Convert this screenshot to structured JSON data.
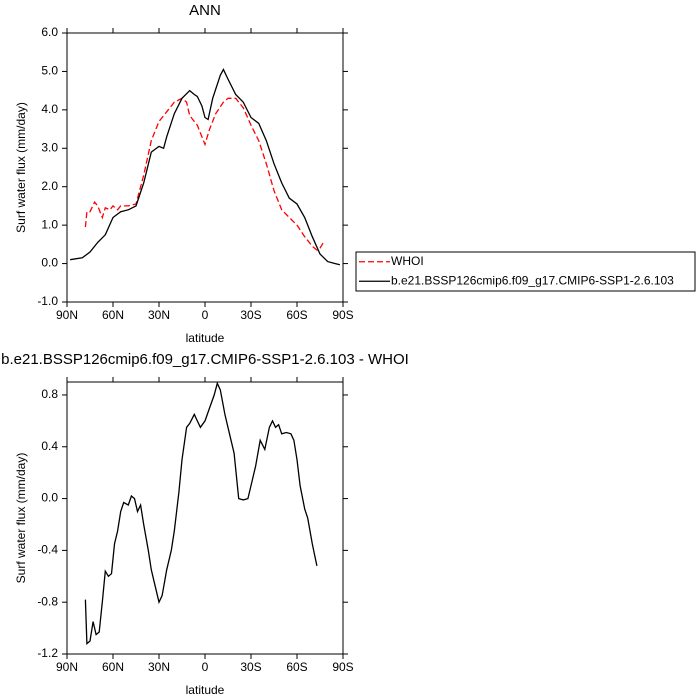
{
  "chart_data": [
    {
      "type": "line",
      "title": "ANN",
      "xlabel": "latitude",
      "ylabel": "Surf water flux (mm/day)",
      "xlim": [
        90,
        -90
      ],
      "ylim": [
        -1,
        6
      ],
      "xticks": [
        {
          "value": 90,
          "label": "90N"
        },
        {
          "value": 60,
          "label": "60N"
        },
        {
          "value": 30,
          "label": "30N"
        },
        0,
        {
          "value": -30,
          "label": "30S"
        },
        {
          "value": -60,
          "label": "60S"
        },
        {
          "value": -90,
          "label": "90S"
        }
      ],
      "yticks": [
        {
          "value": -1,
          "label": "-1.0"
        },
        {
          "value": 0,
          "label": "0.0"
        },
        {
          "value": 1,
          "label": "1.0"
        },
        {
          "value": 2,
          "label": "2.0"
        },
        {
          "value": 3,
          "label": "3.0"
        },
        {
          "value": 4,
          "label": "4.0"
        },
        {
          "value": 5,
          "label": "5.0"
        },
        {
          "value": 6,
          "label": "6.0"
        }
      ],
      "legend": "right",
      "series": [
        {
          "name": "WHOI",
          "color": "#ff0000",
          "dash": true,
          "x": [
            78,
            77,
            75,
            72,
            70,
            67,
            65,
            62,
            60,
            57,
            55,
            50,
            45,
            40,
            35,
            30,
            25,
            20,
            15,
            12,
            10,
            5,
            2,
            0,
            -3,
            -7,
            -12,
            -15,
            -20,
            -25,
            -30,
            -35,
            -40,
            -45,
            -50,
            -55,
            -60,
            -65,
            -70,
            -73,
            -75,
            -78
          ],
          "values": [
            0.95,
            1.35,
            1.35,
            1.6,
            1.5,
            1.2,
            1.45,
            1.4,
            1.5,
            1.4,
            1.5,
            1.5,
            1.55,
            2.3,
            3.2,
            3.7,
            3.95,
            4.2,
            4.3,
            4.2,
            3.85,
            3.6,
            3.3,
            3.1,
            3.5,
            3.9,
            4.2,
            4.3,
            4.3,
            4.05,
            3.6,
            3.2,
            2.6,
            1.9,
            1.4,
            1.2,
            1.0,
            0.7,
            0.45,
            0.35,
            0.4,
            0.6
          ]
        },
        {
          "name": "b.e21.BSSP126cmip6.f09_g17.CMIP6-SSP1-2.6.103",
          "color": "#000000",
          "dash": false,
          "x": [
            88,
            80,
            75,
            70,
            65,
            60,
            55,
            50,
            45,
            40,
            35,
            30,
            27,
            25,
            20,
            15,
            10,
            7,
            5,
            2,
            0,
            -2,
            -5,
            -10,
            -12,
            -15,
            -20,
            -25,
            -30,
            -35,
            -40,
            -45,
            -50,
            -55,
            -60,
            -65,
            -70,
            -75,
            -80,
            -85,
            -88
          ],
          "values": [
            0.1,
            0.15,
            0.3,
            0.55,
            0.75,
            1.2,
            1.35,
            1.4,
            1.5,
            2.1,
            2.9,
            3.05,
            3.0,
            3.3,
            3.9,
            4.3,
            4.5,
            4.4,
            4.35,
            4.1,
            3.8,
            3.75,
            4.3,
            4.9,
            5.05,
            4.8,
            4.4,
            4.2,
            3.8,
            3.65,
            3.2,
            2.6,
            2.1,
            1.7,
            1.55,
            1.2,
            0.7,
            0.25,
            0.05,
            0.0,
            -0.03
          ]
        }
      ]
    },
    {
      "type": "line",
      "title": "b.e21.BSSP126cmip6.f09_g17.CMIP6-SSP1-2.6.103 - WHOI",
      "xlabel": "latitude",
      "ylabel": "Surf water flux (mm/day)",
      "xlim": [
        90,
        -90
      ],
      "ylim": [
        -1.2,
        0.9
      ],
      "xticks": [
        {
          "value": 90,
          "label": "90N"
        },
        {
          "value": 60,
          "label": "60N"
        },
        {
          "value": 30,
          "label": "30N"
        },
        0,
        {
          "value": -30,
          "label": "30S"
        },
        {
          "value": -60,
          "label": "60S"
        },
        {
          "value": -90,
          "label": "90S"
        }
      ],
      "yticks": [
        -1.2,
        -0.8,
        -0.4,
        {
          "value": 0,
          "label": "0.0"
        },
        0.4,
        0.8
      ],
      "series": [
        {
          "color": "#000000",
          "dash": false,
          "x": [
            78,
            77,
            75,
            73,
            71,
            69,
            67,
            65,
            63,
            61,
            59,
            57,
            55,
            53,
            50,
            48,
            46,
            44,
            42,
            40,
            37,
            35,
            32,
            30,
            28,
            25,
            22,
            20,
            17,
            15,
            12,
            10,
            7,
            5,
            3,
            0,
            -3,
            -6,
            -8,
            -10,
            -13,
            -16,
            -19,
            -22,
            -25,
            -28,
            -30,
            -33,
            -36,
            -39,
            -42,
            -44,
            -46,
            -48,
            -50,
            -53,
            -56,
            -58,
            -60,
            -62,
            -65,
            -67,
            -70,
            -73
          ],
          "values": [
            -0.78,
            -1.12,
            -1.1,
            -0.95,
            -1.05,
            -1.03,
            -0.8,
            -0.56,
            -0.6,
            -0.58,
            -0.35,
            -0.25,
            -0.1,
            -0.03,
            -0.05,
            0.02,
            0.0,
            -0.1,
            -0.05,
            -0.2,
            -0.4,
            -0.55,
            -0.7,
            -0.8,
            -0.75,
            -0.55,
            -0.4,
            -0.25,
            0.05,
            0.3,
            0.55,
            0.58,
            0.65,
            0.6,
            0.55,
            0.6,
            0.7,
            0.8,
            0.89,
            0.84,
            0.65,
            0.5,
            0.35,
            0.0,
            -0.01,
            0.0,
            0.1,
            0.25,
            0.45,
            0.38,
            0.55,
            0.6,
            0.55,
            0.57,
            0.5,
            0.51,
            0.5,
            0.45,
            0.3,
            0.1,
            -0.08,
            -0.15,
            -0.35,
            -0.52
          ]
        }
      ]
    }
  ]
}
